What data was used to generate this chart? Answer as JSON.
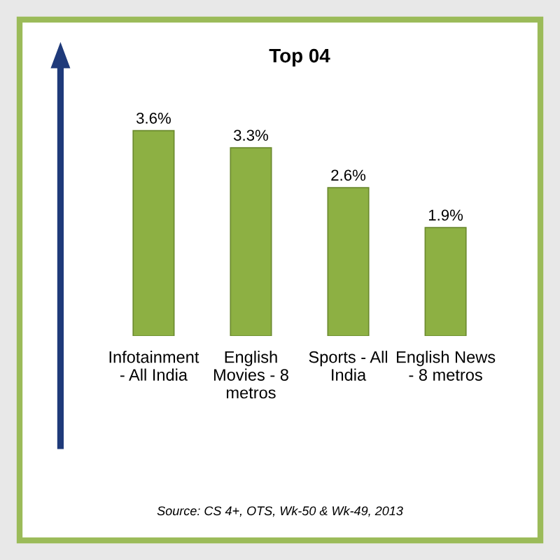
{
  "chart_data": {
    "type": "bar",
    "title": "Top 04",
    "categories": [
      "Infotainment - All India",
      "English Movies - 8 metros",
      "Sports - All India",
      "English News - 8 metros"
    ],
    "values": [
      3.6,
      3.3,
      2.6,
      1.9
    ],
    "value_labels": [
      "3.6%",
      "3.3%",
      "2.6%",
      "1.9%"
    ],
    "color": "#8db043",
    "grid": false,
    "annotations": [
      "Source: CS 4+, OTS, Wk-50 & Wk-49, 2013"
    ]
  }
}
